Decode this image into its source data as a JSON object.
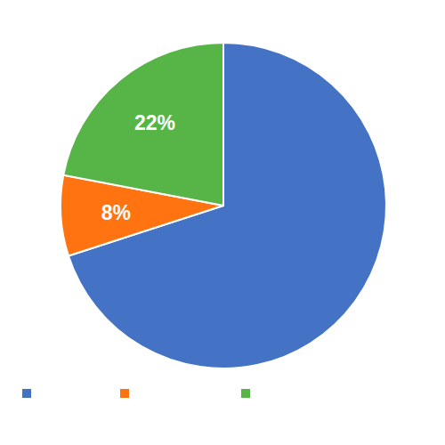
{
  "chart_data": {
    "type": "pie",
    "categories": [
      null,
      null,
      null
    ],
    "values": [
      70,
      8,
      22
    ],
    "value_labels": [
      null,
      "8%",
      "22%"
    ],
    "colors": [
      "#4472c4",
      "#ff7410",
      "#57b446"
    ],
    "data_labels": true,
    "legend": "bottom"
  }
}
